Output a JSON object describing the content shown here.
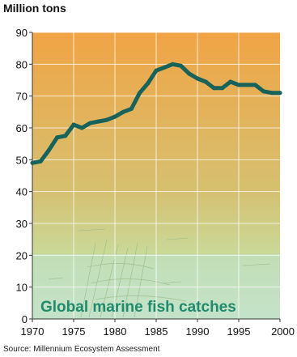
{
  "chart_data": {
    "type": "line",
    "title": "Global marine fish catches",
    "ylabel": "Million tons",
    "xlabel": "",
    "source": "Source: Millennium Ecosystem Assessment",
    "xlim": [
      1970,
      2000
    ],
    "ylim": [
      0,
      90
    ],
    "x_ticks": [
      "1970",
      "1975",
      "1980",
      "1985",
      "1990",
      "1995",
      "2000"
    ],
    "y_ticks": [
      "0",
      "10",
      "20",
      "30",
      "40",
      "50",
      "60",
      "70",
      "80",
      "90"
    ],
    "grid": true,
    "series": [
      {
        "name": "",
        "x": [
          1970,
          1971,
          1972,
          1973,
          1974,
          1975,
          1976,
          1977,
          1978,
          1979,
          1980,
          1981,
          1982,
          1983,
          1984,
          1985,
          1986,
          1987,
          1988,
          1989,
          1990,
          1991,
          1992,
          1993,
          1994,
          1995,
          1996,
          1997,
          1998,
          1999,
          2000
        ],
        "values": [
          49,
          49.5,
          53,
          57,
          57.5,
          61,
          60,
          61.5,
          62,
          62.5,
          63.5,
          65,
          66,
          71,
          74,
          78,
          79,
          80,
          79.5,
          77,
          75.5,
          74.5,
          72.5,
          72.5,
          74.5,
          73.5,
          73.5,
          73.5,
          71.5,
          71,
          71
        ]
      }
    ],
    "colors": {
      "line": "#17625b",
      "background_top": "#f0a445",
      "background_mid": "#cfc97e",
      "background_bottom": "#cfe6cf",
      "water_band": "#bfe0c6",
      "title_text": "#1f8a6c",
      "tick_text": "#111111"
    }
  }
}
